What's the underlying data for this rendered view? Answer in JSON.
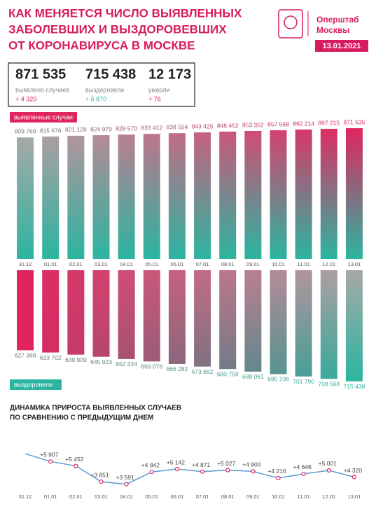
{
  "header": {
    "title": [
      "КАК МЕНЯЕТСЯ ЧИСЛО ВЫЯВЛЕННЫХ",
      "ЗАБОЛЕВШИХ И ВЫЗДОРОВЕВШИХ",
      "ОТ КОРОНАВИРУСА В МОСКВЕ"
    ],
    "logo": [
      "Оперштаб",
      "Москвы"
    ],
    "date": "13.01.2021"
  },
  "stats": [
    {
      "number": "871 535",
      "label": "выявлено случаев",
      "delta": "+ 4 320"
    },
    {
      "number": "715 438",
      "label": "выздоровели",
      "delta": "+ 6 870"
    },
    {
      "number": "12 173",
      "label": "умерли",
      "delta": "+ 76"
    }
  ],
  "chart_data": [
    {
      "type": "bar",
      "title": "выявленные случаи",
      "categories": [
        "31.12",
        "01.01",
        "02.01",
        "03.01",
        "04.01",
        "05.01",
        "06.01",
        "07.01",
        "08.01",
        "09.01",
        "10.01",
        "11.01",
        "12.01",
        "13.01"
      ],
      "values": [
        809769,
        815676,
        821128,
        824979,
        828570,
        833412,
        838554,
        843425,
        848452,
        853352,
        857568,
        862214,
        867215,
        871535
      ],
      "value_labels": [
        "809 769",
        "815 676",
        "821 128",
        "824 979",
        "828 570",
        "833 412",
        "838 554",
        "843 425",
        "848 452",
        "853 352",
        "857 568",
        "862 214",
        "867 215",
        "871 535"
      ],
      "ylim": [
        0,
        900000
      ],
      "colors": [
        "#2bb5a0",
        "#e0245e"
      ]
    },
    {
      "type": "bar-down",
      "title": "выздоровели",
      "values": [
        627368,
        633702,
        639809,
        645923,
        652324,
        659076,
        666282,
        673692,
        680759,
        688061,
        695106,
        701790,
        708568,
        715438
      ],
      "value_labels": [
        "627 368",
        "633 702",
        "639 809",
        "645 923",
        "652 324",
        "659 076",
        "666 282",
        "673 692",
        "680 759",
        "688 061",
        "695 106",
        "701 790",
        "708 568",
        "715 438"
      ],
      "ylim": [
        400000,
        730000
      ],
      "colors": [
        "#e0245e",
        "#2bb5a0"
      ]
    },
    {
      "type": "line",
      "title": [
        "ДИНАМИКА ПРИРОСТА ВЫЯВЛЕННЫХ СЛУЧАЕВ",
        "ПО СРАВНЕНИЮ С ПРЕДЫДУЩИМ ДНЕМ"
      ],
      "categories": [
        "31.12",
        "01.01",
        "02.01",
        "03.01",
        "04.01",
        "05.01",
        "06.01",
        "07.01",
        "08.01",
        "09.01",
        "10.01",
        "11.01",
        "12.01",
        "13.01"
      ],
      "values": [
        6700,
        5907,
        5452,
        3851,
        3591,
        4842,
        5142,
        4871,
        5027,
        4900,
        4216,
        4646,
        5001,
        4320
      ],
      "value_labels": [
        null,
        "+5 907",
        "+5 452",
        "+3 851",
        "+3 591",
        "+4 842",
        "+5 142",
        "+4 871",
        "+5 027",
        "+4 900",
        "+4 216",
        "+4 646",
        "+5 001",
        "+4 320"
      ],
      "ylim": [
        3000,
        7000
      ],
      "color": "#5b9bd5",
      "marker_color": "#e0245e"
    }
  ]
}
